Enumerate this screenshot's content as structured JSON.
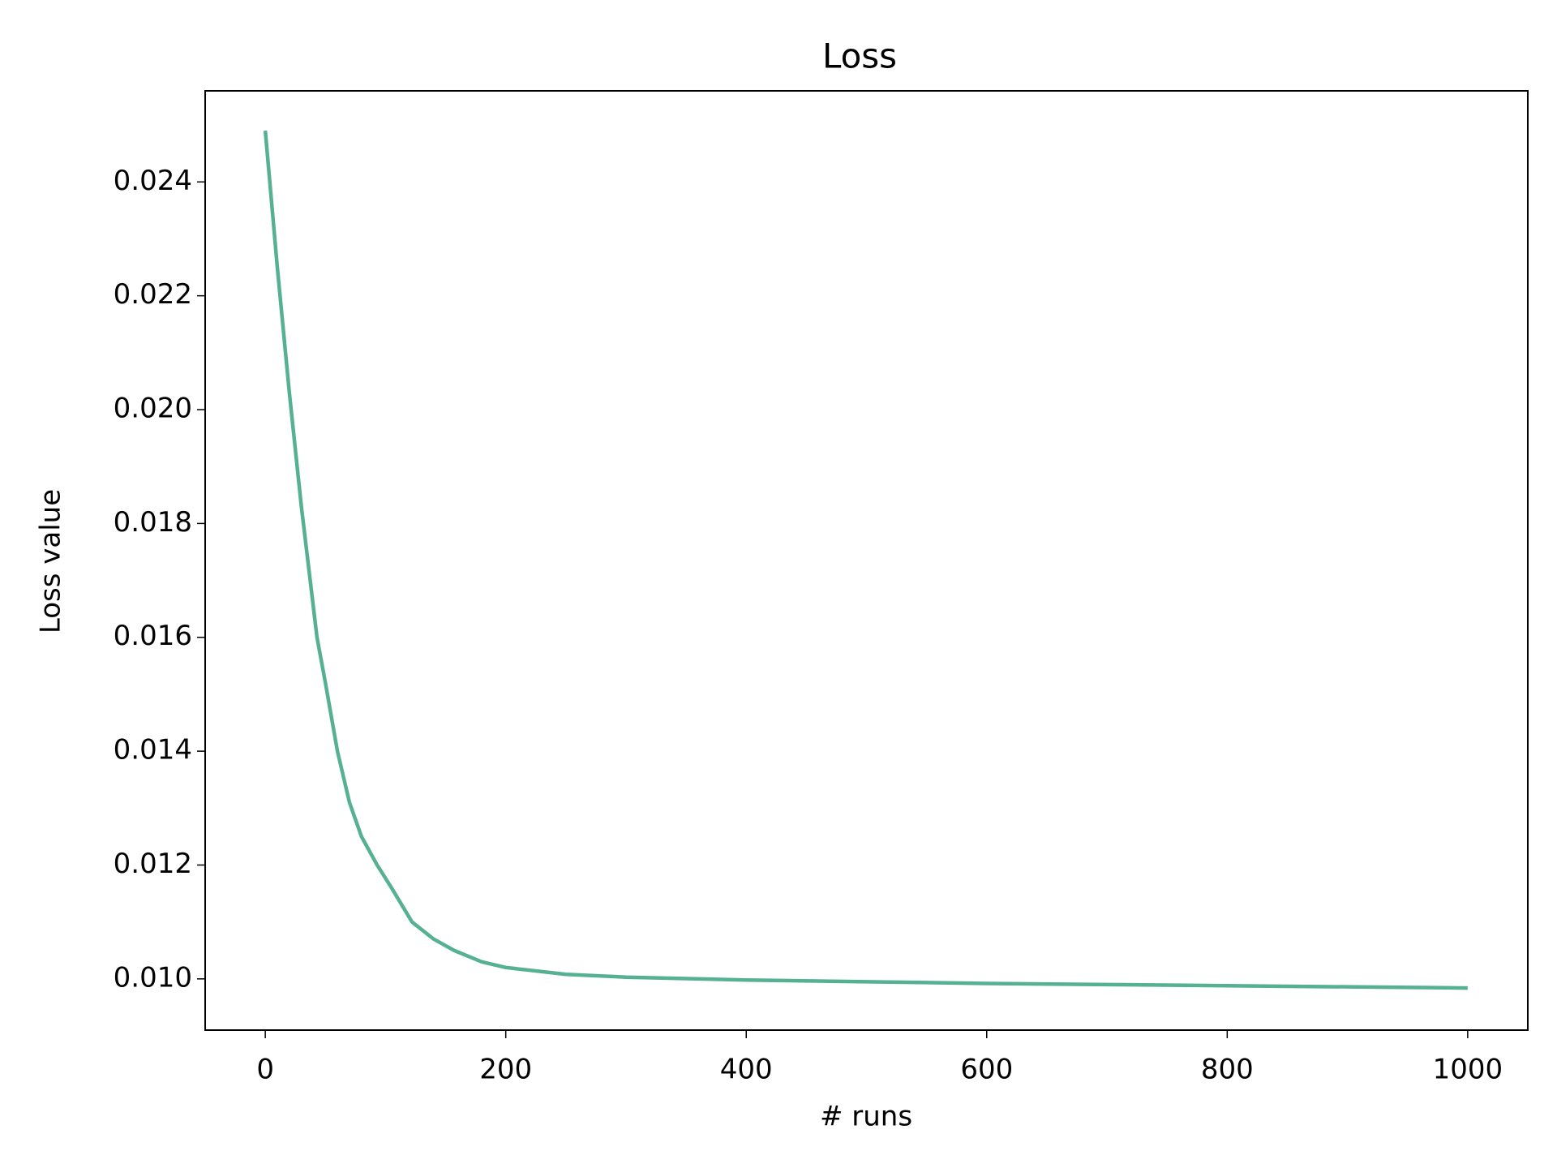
{
  "chart_data": {
    "type": "line",
    "title": "Loss",
    "x_label": "# runs",
    "y_label": "Loss value",
    "x": [
      0,
      10,
      20,
      30,
      43,
      50,
      60,
      70,
      80,
      93,
      105,
      122,
      140,
      157,
      180,
      200,
      250,
      300,
      400,
      500,
      600,
      700,
      800,
      900,
      1000
    ],
    "series": [
      {
        "color": "#55b191",
        "values": [
          0.0249,
          0.0225,
          0.0203,
          0.0183,
          0.016,
          0.0152,
          0.014,
          0.0131,
          0.0125,
          0.012,
          0.0116,
          0.011,
          0.0107,
          0.0105,
          0.0103,
          0.0102,
          0.01008,
          0.01003,
          0.00998,
          0.00995,
          0.00992,
          0.0099,
          0.00988,
          0.00986,
          0.00984
        ]
      }
    ],
    "xlim": [
      -50,
      1050
    ],
    "ylim": [
      0.0091,
      0.0256
    ],
    "xticks": [
      0,
      200,
      400,
      600,
      800,
      1000
    ],
    "yticks": [
      {
        "value": 0.01,
        "label": "0.010"
      },
      0.012,
      0.014,
      0.016,
      0.018,
      {
        "value": 0.02,
        "label": "0.020"
      },
      0.022,
      0.024
    ],
    "grid": false
  }
}
